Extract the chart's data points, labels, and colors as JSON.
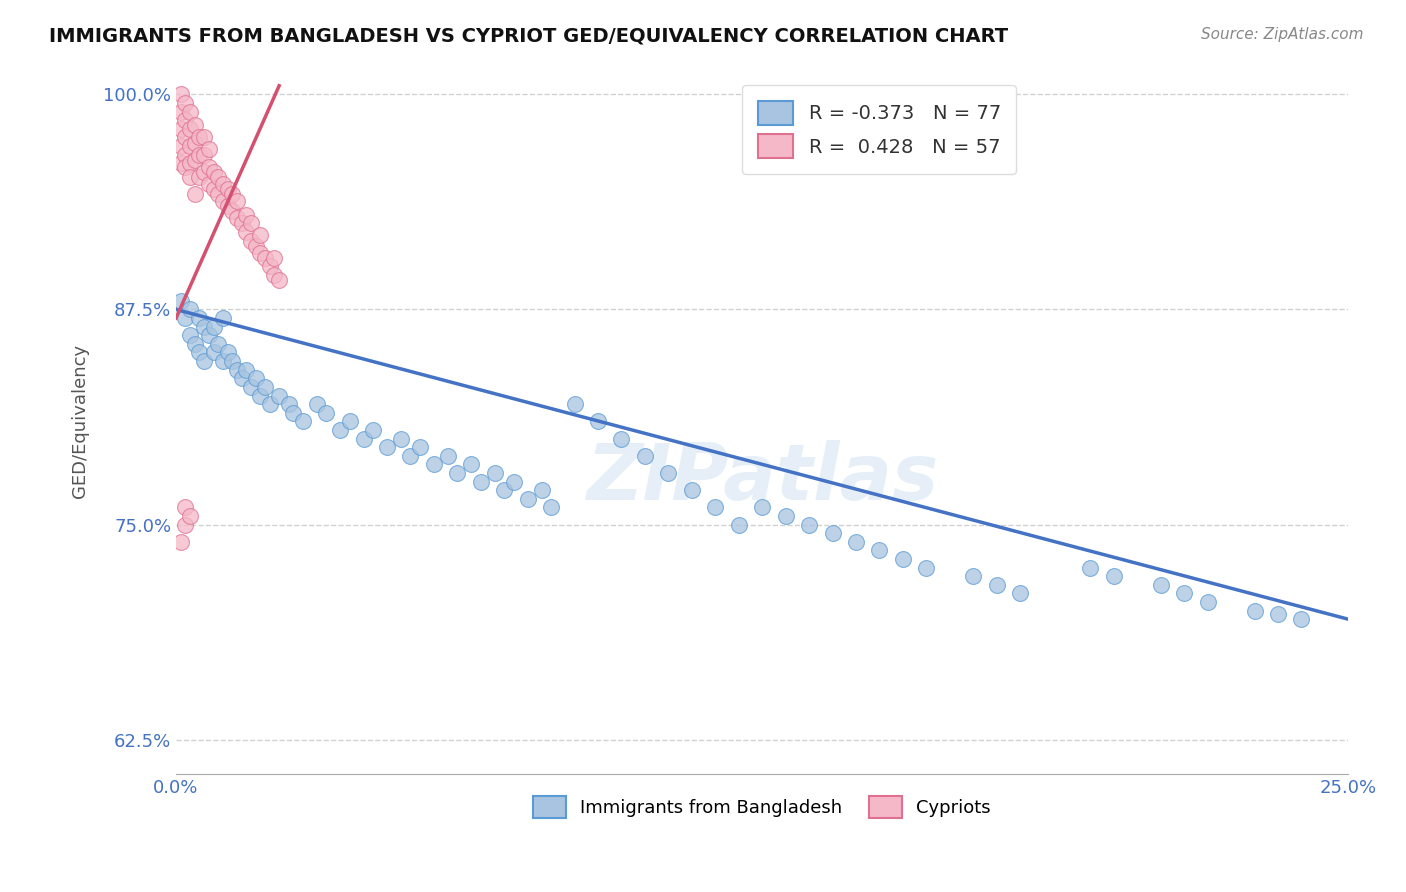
{
  "title": "IMMIGRANTS FROM BANGLADESH VS CYPRIOT GED/EQUIVALENCY CORRELATION CHART",
  "source": "Source: ZipAtlas.com",
  "ylabel": "GED/Equivalency",
  "xlim": [
    0.0,
    0.25
  ],
  "ylim": [
    0.605,
    1.015
  ],
  "yticks": [
    0.625,
    0.75,
    0.875,
    1.0
  ],
  "ytick_labels": [
    "62.5%",
    "75.0%",
    "87.5%",
    "100.0%"
  ],
  "blue_R": -0.373,
  "blue_N": 77,
  "pink_R": 0.428,
  "pink_N": 57,
  "blue_color": "#a8c4e0",
  "blue_edge_color": "#5b9bd5",
  "blue_line_color": "#4472c4",
  "pink_color": "#f4b8c8",
  "pink_edge_color": "#e07090",
  "pink_line_color": "#d45070",
  "legend_label_blue": "Immigrants from Bangladesh",
  "legend_label_pink": "Cypriots",
  "blue_line_x0": 0.0,
  "blue_line_x1": 0.25,
  "blue_line_y0": 0.875,
  "blue_line_y1": 0.695,
  "pink_line_x0": 0.0,
  "pink_line_x1": 0.022,
  "pink_line_y0": 0.87,
  "pink_line_y1": 1.005,
  "watermark": "ZIPatlas",
  "grid_color": "#cccccc",
  "background_color": "#ffffff",
  "blue_dots_x": [
    0.001,
    0.002,
    0.003,
    0.003,
    0.004,
    0.005,
    0.005,
    0.006,
    0.006,
    0.007,
    0.008,
    0.008,
    0.009,
    0.01,
    0.01,
    0.011,
    0.012,
    0.013,
    0.014,
    0.015,
    0.016,
    0.017,
    0.018,
    0.019,
    0.02,
    0.022,
    0.024,
    0.025,
    0.027,
    0.03,
    0.032,
    0.035,
    0.037,
    0.04,
    0.042,
    0.045,
    0.048,
    0.05,
    0.052,
    0.055,
    0.058,
    0.06,
    0.063,
    0.065,
    0.068,
    0.07,
    0.072,
    0.075,
    0.078,
    0.08,
    0.085,
    0.09,
    0.095,
    0.1,
    0.105,
    0.11,
    0.115,
    0.12,
    0.125,
    0.13,
    0.135,
    0.14,
    0.145,
    0.15,
    0.155,
    0.16,
    0.17,
    0.175,
    0.18,
    0.195,
    0.2,
    0.21,
    0.215,
    0.22,
    0.23,
    0.235,
    0.24
  ],
  "blue_dots_y": [
    0.88,
    0.87,
    0.875,
    0.86,
    0.855,
    0.87,
    0.85,
    0.865,
    0.845,
    0.86,
    0.865,
    0.85,
    0.855,
    0.87,
    0.845,
    0.85,
    0.845,
    0.84,
    0.835,
    0.84,
    0.83,
    0.835,
    0.825,
    0.83,
    0.82,
    0.825,
    0.82,
    0.815,
    0.81,
    0.82,
    0.815,
    0.805,
    0.81,
    0.8,
    0.805,
    0.795,
    0.8,
    0.79,
    0.795,
    0.785,
    0.79,
    0.78,
    0.785,
    0.775,
    0.78,
    0.77,
    0.775,
    0.765,
    0.77,
    0.76,
    0.82,
    0.81,
    0.8,
    0.79,
    0.78,
    0.77,
    0.76,
    0.75,
    0.76,
    0.755,
    0.75,
    0.745,
    0.74,
    0.735,
    0.73,
    0.725,
    0.72,
    0.715,
    0.71,
    0.725,
    0.72,
    0.715,
    0.71,
    0.705,
    0.7,
    0.698,
    0.695
  ],
  "pink_dots_x": [
    0.001,
    0.001,
    0.001,
    0.001,
    0.001,
    0.002,
    0.002,
    0.002,
    0.002,
    0.002,
    0.003,
    0.003,
    0.003,
    0.003,
    0.003,
    0.004,
    0.004,
    0.004,
    0.004,
    0.005,
    0.005,
    0.005,
    0.006,
    0.006,
    0.006,
    0.007,
    0.007,
    0.007,
    0.008,
    0.008,
    0.009,
    0.009,
    0.01,
    0.01,
    0.011,
    0.011,
    0.012,
    0.012,
    0.013,
    0.013,
    0.014,
    0.015,
    0.015,
    0.016,
    0.016,
    0.017,
    0.018,
    0.018,
    0.019,
    0.02,
    0.021,
    0.021,
    0.022,
    0.001,
    0.002,
    0.002,
    0.003
  ],
  "pink_dots_y": [
    0.96,
    0.97,
    0.98,
    0.99,
    1.0,
    0.965,
    0.975,
    0.985,
    0.995,
    0.958,
    0.96,
    0.97,
    0.98,
    0.99,
    0.952,
    0.962,
    0.972,
    0.982,
    0.942,
    0.952,
    0.965,
    0.975,
    0.955,
    0.965,
    0.975,
    0.948,
    0.958,
    0.968,
    0.945,
    0.955,
    0.942,
    0.952,
    0.938,
    0.948,
    0.935,
    0.945,
    0.932,
    0.942,
    0.928,
    0.938,
    0.925,
    0.92,
    0.93,
    0.915,
    0.925,
    0.912,
    0.908,
    0.918,
    0.905,
    0.9,
    0.895,
    0.905,
    0.892,
    0.74,
    0.75,
    0.76,
    0.755
  ]
}
